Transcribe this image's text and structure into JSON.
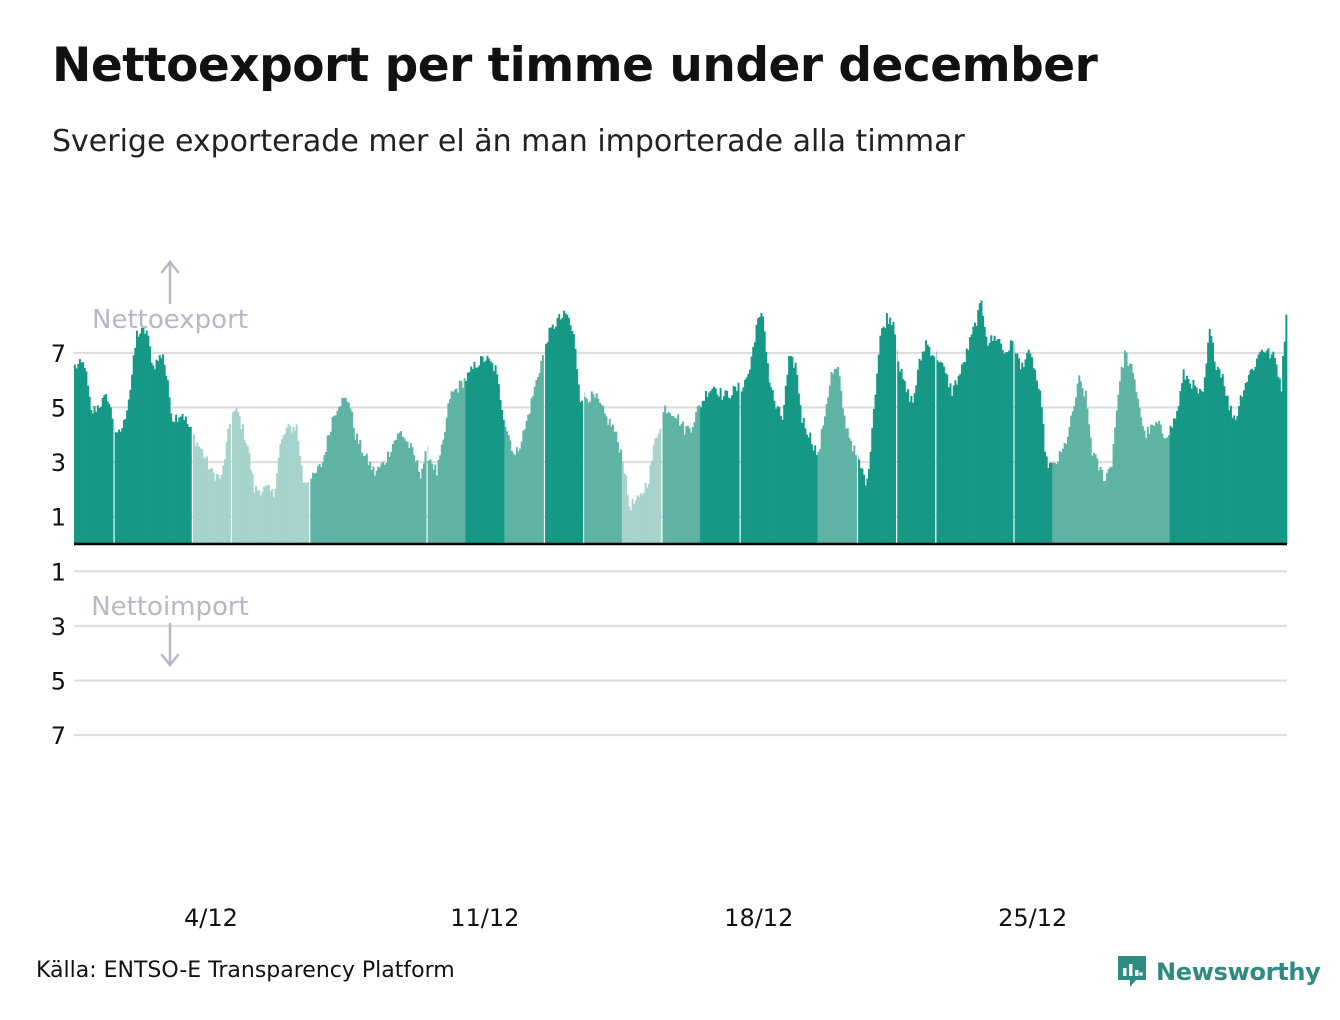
{
  "chart_data": {
    "type": "bar",
    "title": "Nettoexport per timme under december",
    "subtitle": "Sverige exporterade mer el än man importerade alla timmar",
    "source": "Källa: ENTSO-E Transparency Platform",
    "xlabel": "",
    "ylabel": "",
    "y_tick_labels_above": [
      "7",
      "5",
      "3",
      "1"
    ],
    "y_tick_labels_below": [
      "1",
      "3",
      "5",
      "7"
    ],
    "y_ticks_above": [
      7,
      5,
      3,
      1
    ],
    "y_ticks_below": [
      1,
      3,
      5,
      7
    ],
    "ylim": [
      -7.3,
      8.0
    ],
    "export_label": "Nettoexport",
    "import_label": "Nettoimport",
    "x_ticks": [
      {
        "label": "4/12",
        "day": 4
      },
      {
        "label": "11/12",
        "day": 11
      },
      {
        "label": "18/12",
        "day": 18
      },
      {
        "label": "25/12",
        "day": 25
      }
    ],
    "hours": 744,
    "series_keypoints_hour_value": [
      [
        0,
        6.5
      ],
      [
        6,
        6.6
      ],
      [
        10,
        4.8
      ],
      [
        20,
        5.4
      ],
      [
        26,
        3.9
      ],
      [
        30,
        4.4
      ],
      [
        34,
        5.7
      ],
      [
        38,
        7.7
      ],
      [
        44,
        7.8
      ],
      [
        48,
        6.5
      ],
      [
        54,
        7.0
      ],
      [
        60,
        4.6
      ],
      [
        66,
        4.8
      ],
      [
        72,
        4.0
      ],
      [
        78,
        3.4
      ],
      [
        84,
        2.6
      ],
      [
        90,
        2.4
      ],
      [
        96,
        4.8
      ],
      [
        100,
        4.8
      ],
      [
        106,
        3.6
      ],
      [
        110,
        2.0
      ],
      [
        118,
        2.0
      ],
      [
        122,
        1.8
      ],
      [
        126,
        3.6
      ],
      [
        130,
        4.2
      ],
      [
        136,
        4.3
      ],
      [
        140,
        2.3
      ],
      [
        146,
        2.4
      ],
      [
        152,
        3.0
      ],
      [
        158,
        4.6
      ],
      [
        162,
        5.2
      ],
      [
        168,
        5.3
      ],
      [
        172,
        4.0
      ],
      [
        178,
        3.2
      ],
      [
        184,
        2.6
      ],
      [
        190,
        3.0
      ],
      [
        196,
        3.8
      ],
      [
        200,
        4.1
      ],
      [
        206,
        3.5
      ],
      [
        212,
        2.6
      ],
      [
        216,
        3.4
      ],
      [
        222,
        2.6
      ],
      [
        226,
        3.7
      ],
      [
        230,
        5.4
      ],
      [
        236,
        5.8
      ],
      [
        242,
        6.2
      ],
      [
        246,
        6.6
      ],
      [
        252,
        6.8
      ],
      [
        258,
        6.4
      ],
      [
        264,
        4.4
      ],
      [
        270,
        3.2
      ],
      [
        276,
        4.2
      ],
      [
        280,
        5.2
      ],
      [
        284,
        6.2
      ],
      [
        290,
        7.6
      ],
      [
        296,
        8.2
      ],
      [
        302,
        8.4
      ],
      [
        306,
        7.6
      ],
      [
        310,
        5.4
      ],
      [
        316,
        5.4
      ],
      [
        320,
        5.3
      ],
      [
        326,
        4.6
      ],
      [
        330,
        4.3
      ],
      [
        336,
        3.2
      ],
      [
        340,
        1.4
      ],
      [
        346,
        1.6
      ],
      [
        352,
        2.4
      ],
      [
        356,
        3.8
      ],
      [
        362,
        5.0
      ],
      [
        368,
        4.8
      ],
      [
        374,
        4.2
      ],
      [
        378,
        4.3
      ],
      [
        382,
        4.9
      ],
      [
        388,
        5.6
      ],
      [
        392,
        5.8
      ],
      [
        398,
        5.4
      ],
      [
        404,
        5.6
      ],
      [
        410,
        5.8
      ],
      [
        414,
        6.4
      ],
      [
        418,
        8.0
      ],
      [
        422,
        8.4
      ],
      [
        426,
        6.0
      ],
      [
        430,
        5.0
      ],
      [
        434,
        4.6
      ],
      [
        438,
        6.7
      ],
      [
        442,
        6.6
      ],
      [
        446,
        4.6
      ],
      [
        452,
        3.8
      ],
      [
        456,
        3.2
      ],
      [
        460,
        4.8
      ],
      [
        464,
        6.2
      ],
      [
        468,
        6.4
      ],
      [
        472,
        4.6
      ],
      [
        478,
        3.4
      ],
      [
        482,
        2.8
      ],
      [
        486,
        2.2
      ],
      [
        490,
        5.0
      ],
      [
        494,
        7.6
      ],
      [
        498,
        8.3
      ],
      [
        502,
        8.2
      ],
      [
        506,
        6.4
      ],
      [
        510,
        5.6
      ],
      [
        514,
        5.2
      ],
      [
        518,
        6.6
      ],
      [
        522,
        7.4
      ],
      [
        526,
        7.0
      ],
      [
        530,
        6.8
      ],
      [
        534,
        6.2
      ],
      [
        538,
        5.6
      ],
      [
        544,
        6.4
      ],
      [
        548,
        7.2
      ],
      [
        552,
        8.0
      ],
      [
        556,
        8.8
      ],
      [
        560,
        7.4
      ],
      [
        566,
        7.6
      ],
      [
        570,
        7.0
      ],
      [
        576,
        7.4
      ],
      [
        580,
        6.4
      ],
      [
        584,
        7.0
      ],
      [
        588,
        6.6
      ],
      [
        592,
        5.4
      ],
      [
        596,
        3.0
      ],
      [
        600,
        2.8
      ],
      [
        606,
        3.4
      ],
      [
        610,
        4.2
      ],
      [
        616,
        6.0
      ],
      [
        620,
        5.4
      ],
      [
        624,
        3.4
      ],
      [
        628,
        2.8
      ],
      [
        632,
        2.4
      ],
      [
        636,
        3.0
      ],
      [
        640,
        5.6
      ],
      [
        644,
        7.0
      ],
      [
        648,
        6.4
      ],
      [
        652,
        5.4
      ],
      [
        656,
        4.0
      ],
      [
        660,
        4.2
      ],
      [
        664,
        4.4
      ],
      [
        668,
        4.0
      ],
      [
        672,
        4.2
      ],
      [
        676,
        4.8
      ],
      [
        680,
        6.2
      ],
      [
        684,
        6.0
      ],
      [
        688,
        5.6
      ],
      [
        692,
        5.4
      ],
      [
        696,
        7.8
      ],
      [
        700,
        6.6
      ],
      [
        704,
        6.2
      ],
      [
        708,
        5.0
      ],
      [
        712,
        4.6
      ],
      [
        716,
        5.6
      ],
      [
        720,
        6.2
      ],
      [
        724,
        6.6
      ],
      [
        728,
        7.2
      ],
      [
        732,
        7.0
      ],
      [
        736,
        6.8
      ],
      [
        740,
        5.8
      ],
      [
        743,
        8.5
      ]
    ],
    "bar_color": "#1a9a88",
    "colors": {
      "axis": "#000000",
      "grid": "#dcdcdc",
      "annotation": "#b7b7c8"
    }
  },
  "logo_name": "Newsworthy"
}
